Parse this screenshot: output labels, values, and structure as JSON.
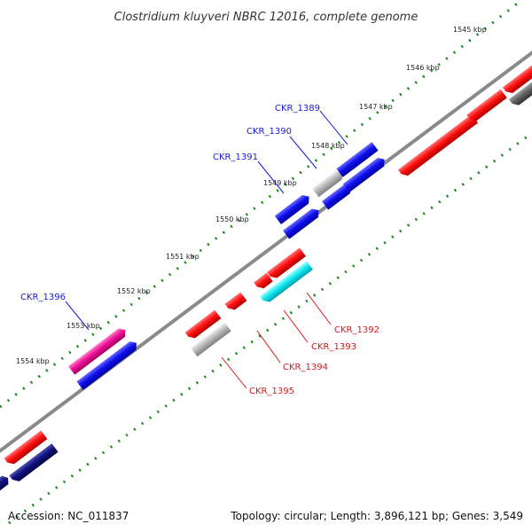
{
  "title": "Clostridium kluyveri NBRC 12016, complete genome",
  "footer": {
    "accession": "Accession: NC_011837",
    "summary": "Topology: circular; Length: 3,896,121 bp; Genes: 3,549"
  },
  "colors": {
    "tick": "#1a8a1a",
    "backbone": "#8a8a8a",
    "label_blue": "#1a1ad4",
    "label_red": "#d41a1a",
    "gene_red": "#ff1010",
    "gene_blue": "#1010f0",
    "gene_navy": "#101080",
    "gene_gray": "#b0b0b0",
    "gene_darkgray": "#606060",
    "gene_cyan": "#10e8f0",
    "gene_pink": "#f0109a"
  },
  "scale": {
    "ticks": [
      "1545 kbp",
      "1546 kbp",
      "1547 kbp",
      "1548 kbp",
      "1549 kbp",
      "1550 kbp",
      "1551 kbp",
      "1552 kbp",
      "1553 kbp",
      "1554 kbp"
    ]
  },
  "gene_labels": {
    "ckr1389": "CKR_1389",
    "ckr1390": "CKR_1390",
    "ckr1391": "CKR_1391",
    "ckr1396": "CKR_1396",
    "ckr1392": "CKR_1392",
    "ckr1393": "CKR_1393",
    "ckr1394": "CKR_1394",
    "ckr1395": "CKR_1395"
  }
}
